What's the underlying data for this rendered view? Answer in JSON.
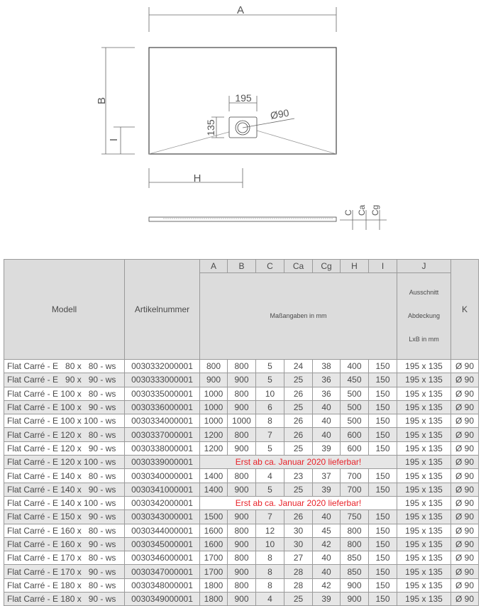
{
  "drawing": {
    "label_a": "A",
    "label_b": "B",
    "label_i": "I",
    "label_h": "H",
    "label_195": "195",
    "label_135": "135",
    "label_diameter": "Ø90",
    "label_c": "C",
    "label_ca": "Ca",
    "label_cg": "Cg"
  },
  "table": {
    "headers": {
      "modell": "Modell",
      "artikelnummer": "Artikelnummer",
      "dims": [
        "A",
        "B",
        "C",
        "Ca",
        "Cg",
        "H",
        "I"
      ],
      "j": "J",
      "k": "K",
      "dims_subheader": "Maßangaben in mm",
      "j_sub_1": "Ausschnitt",
      "j_sub_2": "Abdeckung",
      "j_sub_3": "LxB in mm"
    },
    "rows": [
      {
        "model": "Flat Carré - E   80 x   80 - ws",
        "article": "0030332000001",
        "values": [
          "800",
          "800",
          "5",
          "24",
          "38",
          "400",
          "150"
        ],
        "j": "195 x 135",
        "k": "Ø 90"
      },
      {
        "model": "Flat Carré - E   90 x   90 - ws",
        "article": "0030333000001",
        "values": [
          "900",
          "900",
          "5",
          "25",
          "36",
          "450",
          "150"
        ],
        "j": "195 x 135",
        "k": "Ø 90"
      },
      {
        "model": "Flat Carré - E 100 x   80 - ws",
        "article": "0030335000001",
        "values": [
          "1000",
          "800",
          "10",
          "26",
          "36",
          "500",
          "150"
        ],
        "j": "195 x 135",
        "k": "Ø 90"
      },
      {
        "model": "Flat Carré - E 100 x   90 - ws",
        "article": "0030336000001",
        "values": [
          "1000",
          "900",
          "6",
          "25",
          "40",
          "500",
          "150"
        ],
        "j": "195 x 135",
        "k": "Ø 90"
      },
      {
        "model": "Flat Carré - E 100 x 100 - ws",
        "article": "0030334000001",
        "values": [
          "1000",
          "1000",
          "8",
          "26",
          "40",
          "500",
          "150"
        ],
        "j": "195 x 135",
        "k": "Ø 90"
      },
      {
        "model": "Flat Carré - E 120 x   80 - ws",
        "article": "0030337000001",
        "values": [
          "1200",
          "800",
          "7",
          "26",
          "40",
          "600",
          "150"
        ],
        "j": "195 x 135",
        "k": "Ø 90"
      },
      {
        "model": "Flat Carré - E 120 x   90 - ws",
        "article": "0030338000001",
        "values": [
          "1200",
          "900",
          "5",
          "25",
          "39",
          "600",
          "150"
        ],
        "j": "195 x 135",
        "k": "Ø 90"
      },
      {
        "model": "Flat Carré - E 120 x 100 - ws",
        "article": "0030339000001",
        "note": "Erst ab ca. Januar 2020 lieferbar!",
        "j": "195 x 135",
        "k": "Ø 90"
      },
      {
        "model": "Flat Carré - E 140 x   80 - ws",
        "article": "0030340000001",
        "values": [
          "1400",
          "800",
          "4",
          "23",
          "37",
          "700",
          "150"
        ],
        "j": "195 x 135",
        "k": "Ø 90"
      },
      {
        "model": "Flat Carré - E 140 x   90 - ws",
        "article": "0030341000001",
        "values": [
          "1400",
          "900",
          "5",
          "25",
          "39",
          "700",
          "150"
        ],
        "j": "195 x 135",
        "k": "Ø 90"
      },
      {
        "model": "Flat Carré - E 140 x 100 - ws",
        "article": "0030342000001",
        "note": "Erst ab ca. Januar 2020 lieferbar!",
        "j": "195 x 135",
        "k": "Ø 90"
      },
      {
        "model": "Flat Carré - E 150 x   90 - ws",
        "article": "0030343000001",
        "values": [
          "1500",
          "900",
          "7",
          "26",
          "40",
          "750",
          "150"
        ],
        "j": "195 x 135",
        "k": "Ø 90"
      },
      {
        "model": "Flat Carré - E 160 x   80 - ws",
        "article": "0030344000001",
        "values": [
          "1600",
          "800",
          "12",
          "30",
          "45",
          "800",
          "150"
        ],
        "j": "195 x 135",
        "k": "Ø 90"
      },
      {
        "model": "Flat Carré - E 160 x   90 - ws",
        "article": "0030345000001",
        "values": [
          "1600",
          "900",
          "10",
          "30",
          "42",
          "800",
          "150"
        ],
        "j": "195 x 135",
        "k": "Ø 90"
      },
      {
        "model": "Flat Carré - E 170 x   80 - ws",
        "article": "0030346000001",
        "values": [
          "1700",
          "800",
          "8",
          "27",
          "40",
          "850",
          "150"
        ],
        "j": "195 x 135",
        "k": "Ø 90"
      },
      {
        "model": "Flat Carré - E 170 x   90 - ws",
        "article": "0030347000001",
        "values": [
          "1700",
          "900",
          "8",
          "28",
          "40",
          "850",
          "150"
        ],
        "j": "195 x 135",
        "k": "Ø 90"
      },
      {
        "model": "Flat Carré - E 180 x   80 - ws",
        "article": "0030348000001",
        "values": [
          "1800",
          "800",
          "8",
          "28",
          "42",
          "900",
          "150"
        ],
        "j": "195 x 135",
        "k": "Ø 90"
      },
      {
        "model": "Flat Carré - E 180 x   90 - ws",
        "article": "0030349000001",
        "values": [
          "1800",
          "900",
          "4",
          "25",
          "39",
          "900",
          "150"
        ],
        "j": "195 x 135",
        "k": "Ø 90"
      }
    ]
  }
}
